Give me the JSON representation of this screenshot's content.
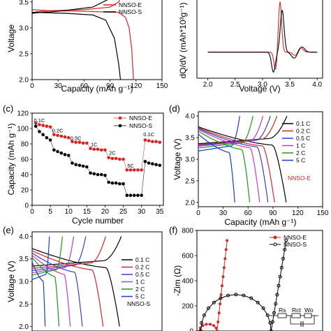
{
  "panels": {
    "a": {
      "label": ""
    },
    "b": {
      "label": ""
    },
    "c": {
      "label": "(c)"
    },
    "d": {
      "label": "(d)"
    },
    "e": {
      "label": "(e)"
    },
    "f": {
      "label": "(f)"
    }
  },
  "chart_data": [
    {
      "id": "a",
      "type": "line",
      "xlabel": "Capacity (mAh g⁻¹)",
      "ylabel": "Voltage",
      "xlim": [
        0,
        150
      ],
      "ylim": [
        2.0,
        3.7
      ],
      "xticks": [
        "0",
        "30",
        "60",
        "90",
        "120",
        "150"
      ],
      "yticks": [
        "2.0",
        "2.5",
        "3.0",
        "3.5"
      ],
      "legend": [
        "NNSO-E",
        "NNSO-S"
      ],
      "colors": [
        "#d62728",
        "#000000"
      ],
      "series": [
        {
          "name": "NNSO-E",
          "charge": [
            [
              0,
              3.28
            ],
            [
              5,
              3.31
            ],
            [
              20,
              3.33
            ],
            [
              60,
              3.35
            ],
            [
              90,
              3.4
            ],
            [
              100,
              3.5
            ],
            [
              103,
              3.65
            ],
            [
              104,
              3.7
            ]
          ],
          "discharge": [
            [
              0,
              3.35
            ],
            [
              20,
              3.33
            ],
            [
              60,
              3.32
            ],
            [
              100,
              3.3
            ],
            [
              108,
              3.2
            ],
            [
              112,
              3.0
            ],
            [
              115,
              2.6
            ],
            [
              117,
              2.0
            ]
          ]
        },
        {
          "name": "NNSO-S",
          "charge": [
            [
              0,
              3.28
            ],
            [
              5,
              3.29
            ],
            [
              30,
              3.32
            ],
            [
              70,
              3.4
            ],
            [
              88,
              3.55
            ],
            [
              94,
              3.7
            ]
          ],
          "discharge": [
            [
              0,
              3.3
            ],
            [
              40,
              3.28
            ],
            [
              70,
              3.25
            ],
            [
              85,
              3.15
            ],
            [
              95,
              2.8
            ],
            [
              100,
              2.3
            ],
            [
              102,
              2.0
            ]
          ]
        }
      ]
    },
    {
      "id": "b",
      "type": "line",
      "xlabel": "Voltage (V)",
      "ylabel": "dQ/dV (mAh*10³g⁻¹)",
      "xlim": [
        1.8,
        4.1
      ],
      "ylim": [
        -1.5,
        3.0
      ],
      "xticks": [
        "2.0",
        "2.5",
        "3.0",
        "3.5",
        "4.0"
      ],
      "colors": [
        "#d62728",
        "#000000"
      ],
      "series": [
        {
          "name": "NNSO-E",
          "peaks": [
            {
              "v": 3.32,
              "h": 2.9,
              "w": 0.03
            },
            {
              "v": 3.68,
              "h": 0.35,
              "w": 0.05
            },
            {
              "v": 3.24,
              "h": -1.05,
              "w": 0.03
            },
            {
              "v": 3.62,
              "h": -0.3,
              "w": 0.05
            }
          ]
        },
        {
          "name": "NNSO-S",
          "peaks": [
            {
              "v": 3.36,
              "h": 2.4,
              "w": 0.035
            },
            {
              "v": 3.72,
              "h": 0.3,
              "w": 0.05
            },
            {
              "v": 3.2,
              "h": -1.15,
              "w": 0.035
            },
            {
              "v": 3.58,
              "h": -0.35,
              "w": 0.05
            }
          ]
        }
      ]
    },
    {
      "id": "c",
      "type": "scatter",
      "xlabel": "Cycle number",
      "ylabel": "Capacity (mAh g⁻¹)",
      "xlim": [
        0,
        36
      ],
      "ylim": [
        0,
        120
      ],
      "xticks": [
        0,
        5,
        10,
        15,
        20,
        25,
        30,
        35
      ],
      "yticks": [
        0,
        20,
        40,
        60,
        80,
        100,
        120
      ],
      "legend": [
        "NNSO-E",
        "NNSO-S"
      ],
      "colors": [
        "#e02020",
        "#000000"
      ],
      "rates": [
        {
          "label": "0.1C",
          "x": 2,
          "y": 108
        },
        {
          "label": "0.2C",
          "x": 7,
          "y": 95
        },
        {
          "label": "0.5C",
          "x": 12,
          "y": 85
        },
        {
          "label": "1C",
          "x": 17,
          "y": 77
        },
        {
          "label": "2C",
          "x": 22,
          "y": 66
        },
        {
          "label": "5C",
          "x": 27,
          "y": 49
        },
        {
          "label": "0.1C",
          "x": 32,
          "y": 90
        }
      ],
      "series": [
        {
          "name": "NNSO-E",
          "values": [
            107,
            105,
            104,
            103,
            102,
            92,
            91,
            90,
            89,
            88,
            83,
            82,
            82,
            81,
            81,
            74,
            73,
            73,
            72,
            72,
            62,
            61,
            61,
            60,
            60,
            46,
            46,
            46,
            46,
            46,
            85,
            84,
            83,
            83,
            82
          ]
        },
        {
          "name": "NNSO-S",
          "values": [
            103,
            96,
            92,
            88,
            85,
            72,
            70,
            68,
            66,
            65,
            55,
            53,
            52,
            51,
            50,
            42,
            41,
            40,
            40,
            39,
            30,
            29,
            29,
            28,
            28,
            13,
            13,
            13,
            13,
            13,
            57,
            55,
            54,
            53,
            52
          ]
        }
      ]
    },
    {
      "id": "d",
      "type": "line",
      "xlabel": "Capacity (mAh g⁻¹)",
      "ylabel": "Voltage (V)",
      "xlim": [
        0,
        150
      ],
      "ylim": [
        1.9,
        4.1
      ],
      "xticks": [
        "0",
        "30",
        "60",
        "90",
        "120",
        "150"
      ],
      "yticks": [
        "2.0",
        "2.5",
        "3.0",
        "3.5",
        "4.0"
      ],
      "annotation": "NNSO-E",
      "legend": [
        "0.1 C",
        "0.2 C",
        "0.5 C",
        "1 C",
        "2 C",
        "5 C"
      ],
      "colors": [
        "#000000",
        "#d62728",
        "#3b3bd6",
        "#c03cc0",
        "#1a9a1a",
        "#1e3cc8"
      ],
      "series": [
        {
          "name": "0.1 C",
          "charge_end": 107,
          "discharge_end": 106,
          "plateau": 3.32
        },
        {
          "name": "0.2 C",
          "charge_end": 95,
          "discharge_end": 92,
          "plateau": 3.3
        },
        {
          "name": "0.5 C",
          "charge_end": 87,
          "discharge_end": 84,
          "plateau": 3.28
        },
        {
          "name": "1 C",
          "charge_end": 78,
          "discharge_end": 74,
          "plateau": 3.26
        },
        {
          "name": "2 C",
          "charge_end": 66,
          "discharge_end": 62,
          "plateau": 3.22
        },
        {
          "name": "5 C",
          "charge_end": 50,
          "discharge_end": 44,
          "plateau": 3.15
        }
      ]
    },
    {
      "id": "e",
      "type": "line",
      "ylabel": "Voltage (V)",
      "xlim": [
        0,
        150
      ],
      "ylim": [
        1.9,
        4.1
      ],
      "yticks": [
        "2.0",
        "2.5",
        "3.0",
        "3.5",
        "4.0"
      ],
      "annotation": "NNSO-S",
      "legend": [
        "0.1 C",
        "0.2 C",
        "0.5 C",
        "1 C",
        "2 C",
        "5 C"
      ],
      "colors": [
        "#000000",
        "#d62728",
        "#3b3bd6",
        "#c03cc0",
        "#1a9a1a",
        "#1e3cc8"
      ],
      "series": [
        {
          "name": "0.1 C",
          "charge_end": 103,
          "discharge_end": 101,
          "plateau": 3.3
        },
        {
          "name": "0.2 C",
          "charge_end": 85,
          "discharge_end": 82,
          "plateau": 3.25
        },
        {
          "name": "0.5 C",
          "charge_end": 62,
          "discharge_end": 58,
          "plateau": 3.2
        },
        {
          "name": "1 C",
          "charge_end": 48,
          "discharge_end": 44,
          "plateau": 3.15
        },
        {
          "name": "2 C",
          "charge_end": 35,
          "discharge_end": 31,
          "plateau": 3.1
        },
        {
          "name": "5 C",
          "charge_end": 20,
          "discharge_end": 15,
          "plateau": 3.0
        }
      ]
    },
    {
      "id": "f",
      "type": "scatter",
      "ylabel": "-Zim (Ω)",
      "xlim": [
        0,
        1000
      ],
      "ylim": [
        0,
        800
      ],
      "yticks": [
        "0",
        "200",
        "400",
        "600",
        "800"
      ],
      "legend": [
        "NNSO-E",
        "NNSO-S"
      ],
      "colors": [
        "#d62728",
        "#000000"
      ],
      "circuit": [
        "Rs",
        "Rct",
        "Wo"
      ],
      "series": [
        {
          "name": "NNSO-E",
          "arc_end": 140,
          "tail_slope": 9
        },
        {
          "name": "NNSO-S",
          "arc_end": 560,
          "tail_slope": 6
        }
      ]
    }
  ]
}
